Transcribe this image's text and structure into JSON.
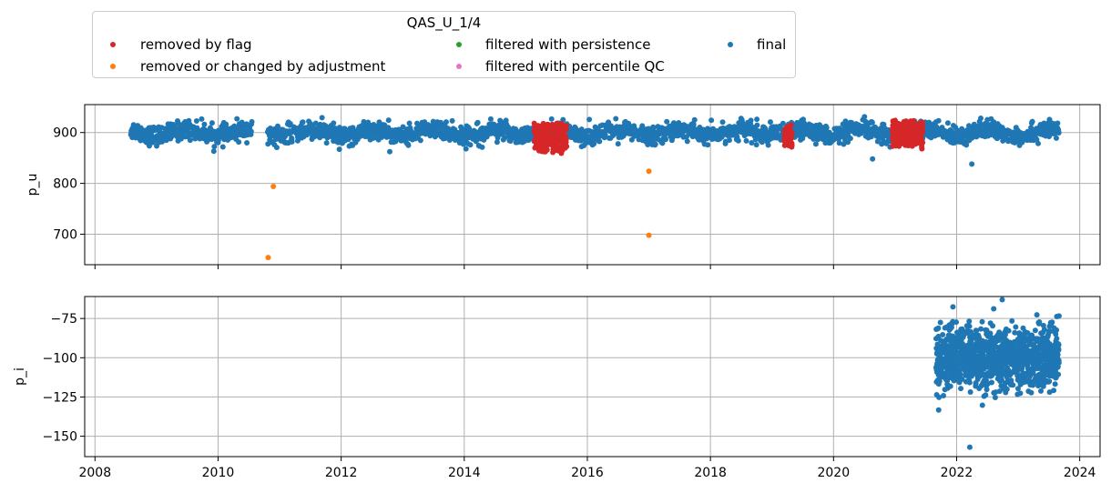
{
  "chart_data": [
    {
      "type": "scatter",
      "ylabel": "p_u",
      "ylim": [
        640,
        955
      ],
      "yticks": [
        700,
        800,
        900
      ],
      "xlim": [
        "2007-11-01",
        "2024-05-01"
      ],
      "grid": true,
      "series": [
        {
          "name": "final",
          "color": "#1f77b4",
          "band": {
            "x_range": [
              "2008-08-01",
              "2023-09-01"
            ],
            "center": 900,
            "spread": 20,
            "excursion_min": 850,
            "excursion_max": 935
          },
          "points": [
            {
              "x": "2020-08-20",
              "y": 848
            },
            {
              "x": "2022-04-01",
              "y": 838
            }
          ]
        },
        {
          "name": "removed by flag",
          "color": "#d62728",
          "segments": [
            {
              "start": "2015-02-20",
              "end": "2015-09-01",
              "min": 855,
              "max": 925
            },
            {
              "start": "2019-03-15",
              "end": "2019-05-01",
              "min": 870,
              "max": 915
            },
            {
              "start": "2020-12-15",
              "end": "2021-06-15",
              "min": 865,
              "max": 930
            }
          ]
        },
        {
          "name": "removed or changed by adjustment",
          "color": "#ff7f0e",
          "points": [
            {
              "x": "2010-10-25",
              "y": 654
            },
            {
              "x": "2010-11-25",
              "y": 794
            },
            {
              "x": "2017-01-01",
              "y": 824
            },
            {
              "x": "2017-01-01",
              "y": 698
            }
          ]
        },
        {
          "name": "filtered with persistence",
          "color": "#2ca02c",
          "points": []
        },
        {
          "name": "filtered with percentile QC",
          "color": "#e377c2",
          "points": []
        }
      ]
    },
    {
      "type": "scatter",
      "ylabel": "p_i",
      "ylim": [
        -163,
        -61
      ],
      "yticks": [
        -150,
        -125,
        -100,
        -75
      ],
      "xlim": [
        "2007-11-01",
        "2024-05-01"
      ],
      "xticks": [
        "2008",
        "2010",
        "2012",
        "2014",
        "2016",
        "2018",
        "2020",
        "2022",
        "2024"
      ],
      "grid": true,
      "series": [
        {
          "name": "final",
          "color": "#1f77b4",
          "cluster": {
            "x_range": [
              "2021-09-01",
              "2023-09-01"
            ],
            "center": -100,
            "spread": 14,
            "excursion_max": -63,
            "excursion_min": -135
          },
          "points": [
            {
              "x": "2022-03-20",
              "y": -157
            }
          ]
        }
      ]
    }
  ],
  "legend": {
    "title": "QAS_U_1/4",
    "placement": "top-center",
    "items": [
      {
        "label": "removed by flag",
        "color": "#d62728"
      },
      {
        "label": "removed or changed by adjustment",
        "color": "#ff7f0e"
      },
      {
        "label": "filtered with persistence",
        "color": "#2ca02c"
      },
      {
        "label": "filtered with percentile QC",
        "color": "#e377c2"
      },
      {
        "label": "final",
        "color": "#1f77b4"
      }
    ]
  }
}
